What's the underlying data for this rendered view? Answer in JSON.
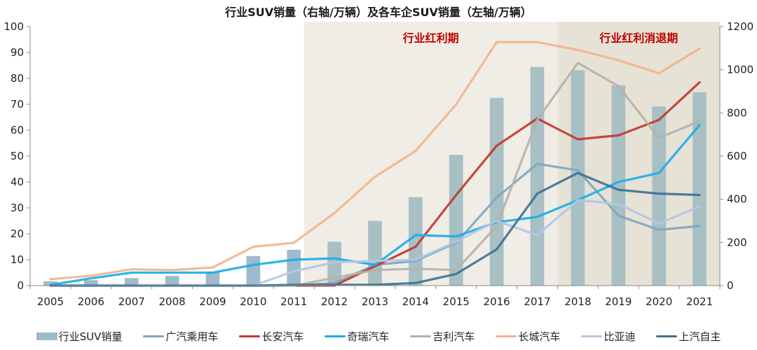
{
  "chart_data": {
    "type": "bar+line",
    "title": "行业SUV销量（右轴/万辆）及各车企SUV销量（左轴/万辆）",
    "categories": [
      "2005",
      "2006",
      "2007",
      "2008",
      "2009",
      "2010",
      "2011",
      "2012",
      "2013",
      "2014",
      "2015",
      "2016",
      "2017",
      "2018",
      "2019",
      "2020",
      "2021"
    ],
    "left_axis": {
      "ylim": [
        0,
        100
      ],
      "ticks": [
        0,
        10,
        20,
        30,
        40,
        50,
        60,
        70,
        80,
        90,
        100
      ]
    },
    "right_axis": {
      "ylim": [
        0,
        1200
      ],
      "ticks": [
        0,
        200,
        400,
        600,
        800,
        1000,
        1200
      ]
    },
    "zones": [
      {
        "label": "行业红利期",
        "from": "2012",
        "to": "2017",
        "color": "#f0ede6"
      },
      {
        "label": "行业红利消退期",
        "from": "2018",
        "to": "2021",
        "color": "#e6e2d6"
      }
    ],
    "bar_series": {
      "name": "行业SUV销量",
      "axis": "right",
      "color": "#9dbbcb",
      "zone_color": "#a8bfc4",
      "values": [
        20,
        25,
        35,
        45,
        65,
        137,
        166,
        203,
        300,
        410,
        606,
        870,
        1013,
        998,
        928,
        830,
        896
      ]
    },
    "series": [
      {
        "name": "广汽乘用车",
        "color": "#7fa7bf",
        "values": [
          0,
          0,
          0,
          0,
          0,
          0,
          0,
          1,
          8,
          9.5,
          16.5,
          34,
          47,
          44.5,
          27,
          21.5,
          23
        ]
      },
      {
        "name": "长安汽车",
        "color": "#c0392b",
        "values": [
          null,
          null,
          null,
          null,
          null,
          null,
          0,
          0,
          7.5,
          15,
          35,
          54,
          64.5,
          56.5,
          58,
          64,
          78.5
        ]
      },
      {
        "name": "奇瑞汽车",
        "color": "#1aaee8",
        "values": [
          0.3,
          2.8,
          5,
          5,
          5,
          8,
          10,
          10.5,
          8,
          19.5,
          19,
          24.5,
          26.5,
          33,
          40,
          43.5,
          62
        ]
      },
      {
        "name": "吉利汽车",
        "color": "#b5b2ac",
        "values": [
          null,
          null,
          null,
          null,
          null,
          null,
          0,
          3,
          6,
          6.5,
          6,
          23,
          64,
          86,
          77,
          57,
          63.5
        ]
      },
      {
        "name": "长城汽车",
        "color": "#f2b48c",
        "values": [
          2.5,
          3.8,
          6.3,
          6,
          7,
          15,
          16.5,
          28,
          42,
          52,
          70,
          94,
          94,
          91,
          87,
          82,
          91.5
        ]
      },
      {
        "name": "比亚迪",
        "color": "#b4c6e4",
        "values": [
          null,
          null,
          null,
          null,
          null,
          0,
          5.5,
          9,
          9.5,
          10,
          17,
          25,
          19.5,
          33,
          31.5,
          24,
          30.5
        ]
      },
      {
        "name": "上汽自主",
        "color": "#3e7195",
        "values": [
          0,
          0,
          0,
          0,
          0,
          0,
          0.3,
          0.3,
          0.3,
          1,
          4.5,
          14,
          35.5,
          43.5,
          37,
          35.5,
          35
        ]
      }
    ],
    "legend_position": "bottom",
    "grid": false
  }
}
